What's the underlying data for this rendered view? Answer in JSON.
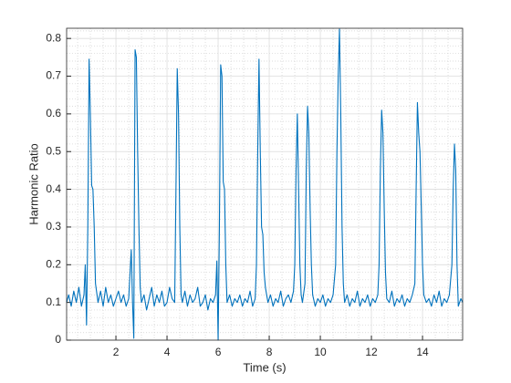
{
  "chart_data": {
    "type": "line",
    "xlabel": "Time (s)",
    "ylabel": "Harmonic Ratio",
    "x": [
      0.07,
      0.15,
      0.25,
      0.35,
      0.45,
      0.55,
      0.65,
      0.75,
      0.8,
      0.85,
      0.9,
      0.95,
      1.0,
      1.05,
      1.1,
      1.15,
      1.2,
      1.3,
      1.4,
      1.5,
      1.6,
      1.7,
      1.8,
      1.9,
      2.0,
      2.1,
      2.2,
      2.3,
      2.4,
      2.5,
      2.6,
      2.65,
      2.7,
      2.75,
      2.8,
      2.85,
      2.9,
      2.95,
      3.0,
      3.1,
      3.2,
      3.3,
      3.4,
      3.5,
      3.6,
      3.7,
      3.8,
      3.9,
      4.0,
      4.1,
      4.2,
      4.3,
      4.35,
      4.4,
      4.45,
      4.5,
      4.55,
      4.6,
      4.7,
      4.8,
      4.9,
      5.0,
      5.1,
      5.2,
      5.3,
      5.4,
      5.5,
      5.6,
      5.7,
      5.8,
      5.9,
      5.95,
      6.0,
      6.05,
      6.1,
      6.15,
      6.2,
      6.25,
      6.3,
      6.35,
      6.45,
      6.55,
      6.65,
      6.75,
      6.85,
      6.95,
      7.05,
      7.15,
      7.25,
      7.35,
      7.45,
      7.5,
      7.55,
      7.6,
      7.65,
      7.7,
      7.75,
      7.8,
      7.85,
      7.95,
      8.05,
      8.15,
      8.25,
      8.35,
      8.45,
      8.55,
      8.65,
      8.75,
      8.85,
      8.95,
      9.0,
      9.05,
      9.1,
      9.15,
      9.2,
      9.25,
      9.3,
      9.4,
      9.45,
      9.5,
      9.55,
      9.6,
      9.65,
      9.7,
      9.8,
      9.9,
      10.0,
      10.1,
      10.2,
      10.3,
      10.4,
      10.5,
      10.6,
      10.65,
      10.7,
      10.75,
      10.8,
      10.85,
      10.9,
      10.95,
      11.05,
      11.15,
      11.25,
      11.35,
      11.45,
      11.55,
      11.65,
      11.75,
      11.85,
      11.95,
      12.05,
      12.15,
      12.25,
      12.3,
      12.35,
      12.4,
      12.45,
      12.5,
      12.55,
      12.6,
      12.7,
      12.8,
      12.9,
      13.0,
      13.1,
      13.2,
      13.3,
      13.4,
      13.5,
      13.6,
      13.7,
      13.75,
      13.8,
      13.85,
      13.9,
      13.95,
      14.0,
      14.05,
      14.15,
      14.25,
      14.35,
      14.45,
      14.55,
      14.65,
      14.75,
      14.85,
      14.95,
      15.05,
      15.15,
      15.2,
      15.25,
      15.3,
      15.35,
      15.4,
      15.5,
      15.57
    ],
    "series": [
      {
        "color": "#0072bd",
        "values": [
          0.1,
          0.12,
          0.09,
          0.13,
          0.1,
          0.14,
          0.09,
          0.12,
          0.2,
          0.04,
          0.3,
          0.745,
          0.6,
          0.41,
          0.4,
          0.3,
          0.15,
          0.1,
          0.13,
          0.09,
          0.14,
          0.1,
          0.12,
          0.09,
          0.11,
          0.13,
          0.1,
          0.12,
          0.09,
          0.11,
          0.24,
          0.1,
          0.005,
          0.77,
          0.75,
          0.5,
          0.3,
          0.14,
          0.1,
          0.12,
          0.08,
          0.11,
          0.14,
          0.09,
          0.12,
          0.1,
          0.13,
          0.09,
          0.1,
          0.14,
          0.11,
          0.1,
          0.4,
          0.72,
          0.6,
          0.3,
          0.12,
          0.1,
          0.13,
          0.09,
          0.12,
          0.1,
          0.11,
          0.14,
          0.09,
          0.1,
          0.12,
          0.08,
          0.11,
          0.1,
          0.12,
          0.21,
          0,
          0.3,
          0.73,
          0.7,
          0.42,
          0.4,
          0.2,
          0.1,
          0.12,
          0.09,
          0.11,
          0.1,
          0.12,
          0.09,
          0.11,
          0.1,
          0.13,
          0.09,
          0.11,
          0.2,
          0.5,
          0.745,
          0.5,
          0.3,
          0.28,
          0.18,
          0.14,
          0.1,
          0.12,
          0.09,
          0.11,
          0.1,
          0.13,
          0.09,
          0.11,
          0.12,
          0.1,
          0.13,
          0.2,
          0.45,
          0.6,
          0.4,
          0.2,
          0.12,
          0.1,
          0.15,
          0.45,
          0.62,
          0.55,
          0.35,
          0.2,
          0.12,
          0.09,
          0.11,
          0.1,
          0.12,
          0.09,
          0.11,
          0.1,
          0.12,
          0.2,
          0.5,
          0.7,
          0.825,
          0.6,
          0.3,
          0.15,
          0.1,
          0.12,
          0.09,
          0.11,
          0.1,
          0.13,
          0.09,
          0.11,
          0.1,
          0.12,
          0.09,
          0.11,
          0.1,
          0.12,
          0.2,
          0.45,
          0.61,
          0.55,
          0.35,
          0.18,
          0.11,
          0.1,
          0.13,
          0.09,
          0.11,
          0.1,
          0.12,
          0.09,
          0.11,
          0.1,
          0.12,
          0.15,
          0.4,
          0.63,
          0.55,
          0.5,
          0.35,
          0.2,
          0.12,
          0.1,
          0.11,
          0.09,
          0.12,
          0.1,
          0.13,
          0.09,
          0.11,
          0.1,
          0.12,
          0.2,
          0.4,
          0.52,
          0.45,
          0.2,
          0.09,
          0.11,
          0.1
        ]
      }
    ],
    "xlim": [
      0.07,
      15.57
    ],
    "ylim": [
      0,
      0.827
    ],
    "xticks": [
      2,
      4,
      6,
      8,
      10,
      12,
      14
    ],
    "yticks": [
      0,
      0.1,
      0.2,
      0.3,
      0.4,
      0.5,
      0.6,
      0.7,
      0.8
    ],
    "xminorticks": [
      0.5,
      1,
      1.5,
      2.5,
      3,
      3.5,
      4.5,
      5,
      5.5,
      6.5,
      7,
      7.5,
      8.5,
      9,
      9.5,
      10.5,
      11,
      11.5,
      12.5,
      13,
      13.5,
      14.5,
      15,
      15.5
    ],
    "yminorticks": [
      0.02,
      0.04,
      0.06,
      0.08,
      0.12,
      0.14,
      0.16,
      0.18,
      0.22,
      0.24,
      0.26,
      0.28,
      0.32,
      0.34,
      0.36,
      0.38,
      0.42,
      0.44,
      0.46,
      0.48,
      0.52,
      0.54,
      0.56,
      0.58,
      0.62,
      0.64,
      0.66,
      0.68,
      0.72,
      0.74,
      0.76,
      0.78,
      0.82
    ],
    "grid": true,
    "minor_grid": true
  }
}
